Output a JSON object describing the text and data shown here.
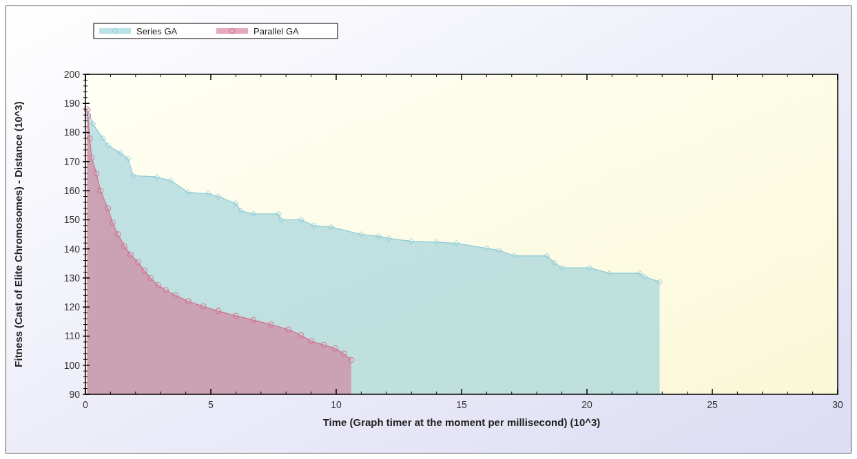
{
  "chart_data": {
    "type": "area",
    "xlabel": "Time (Graph timer at the moment per millisecond) (10^3)",
    "ylabel": "Fitness (Cast of Elite Chromosomes) - Distance (10^3)",
    "xlim": [
      0,
      30
    ],
    "xticks": [
      0,
      5,
      10,
      15,
      20,
      25,
      30
    ],
    "ylim": [
      90,
      200
    ],
    "yticks": [
      90,
      100,
      110,
      120,
      130,
      140,
      150,
      160,
      170,
      180,
      190,
      200
    ],
    "grid": false,
    "legend": "top left",
    "series": [
      {
        "name": "Series GA",
        "color": "#8ccbd8",
        "marker": "diamond",
        "x": [
          0.1,
          0.3,
          0.7,
          0.9,
          1.4,
          1.7,
          1.9,
          2.85,
          3.4,
          4.1,
          4.9,
          5.3,
          6.0,
          6.2,
          6.7,
          7.7,
          7.8,
          8.6,
          9.1,
          9.8,
          11.0,
          11.7,
          12.1,
          13.0,
          14.0,
          14.8,
          16.0,
          16.5,
          17.1,
          18.4,
          18.7,
          19.0,
          20.1,
          20.9,
          22.1,
          22.3,
          22.9
        ],
        "values": [
          187.5,
          183,
          178,
          175.5,
          173,
          171,
          165.2,
          164.7,
          163.5,
          159.4,
          159,
          158,
          155.6,
          153,
          152,
          152,
          150,
          150,
          148,
          147.5,
          145,
          144.3,
          143.6,
          142.6,
          142.3,
          141.9,
          140.2,
          139.5,
          137.6,
          137.6,
          135.2,
          133.5,
          133.5,
          131.6,
          131.6,
          130.4,
          128.7
        ]
      },
      {
        "name": "Parallel GA",
        "color": "#d46f8f",
        "marker": "circle",
        "x": [
          0.05,
          0.1,
          0.17,
          0.25,
          0.44,
          0.6,
          0.9,
          1.08,
          1.3,
          1.55,
          1.8,
          2.1,
          2.35,
          2.6,
          2.9,
          3.2,
          3.6,
          4.1,
          4.7,
          5.3,
          6.0,
          6.7,
          7.4,
          8.1,
          8.6,
          9.0,
          9.5,
          9.95,
          10.3,
          10.6
        ],
        "values": [
          188,
          185.8,
          177.9,
          171.4,
          165.9,
          160,
          153.9,
          149,
          145,
          141,
          138,
          135.4,
          132.5,
          129.9,
          127.5,
          125.8,
          124,
          122,
          120.2,
          118.6,
          117,
          115.5,
          114,
          112.3,
          110.3,
          108.3,
          107,
          105.8,
          104,
          101.8
        ]
      }
    ]
  }
}
